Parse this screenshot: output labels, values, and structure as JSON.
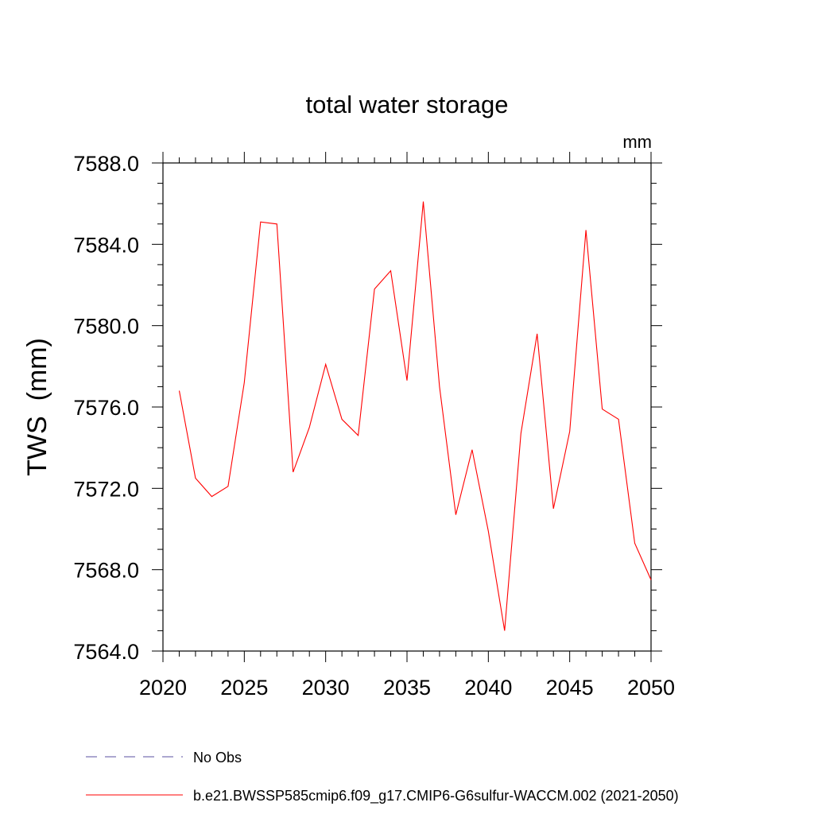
{
  "chart_data": {
    "type": "line",
    "title": "total water storage",
    "units_label": "mm",
    "ylabel": "TWS  (mm)",
    "xlabel": "",
    "xlim": [
      2020,
      2050
    ],
    "ylim": [
      7564.0,
      7588.0
    ],
    "x_ticks": [
      2020,
      2025,
      2030,
      2035,
      2040,
      2045,
      2050
    ],
    "x_tick_labels": [
      "2020",
      "2025",
      "2030",
      "2035",
      "2040",
      "2045",
      "2050"
    ],
    "y_ticks": [
      7564.0,
      7568.0,
      7572.0,
      7576.0,
      7580.0,
      7584.0,
      7588.0
    ],
    "y_tick_labels": [
      "7564.0",
      "7568.0",
      "7572.0",
      "7576.0",
      "7580.0",
      "7584.0",
      "7588.0"
    ],
    "grid": false,
    "legend_position": "bottom",
    "series": [
      {
        "name": "b.e21.BWSSP585cmip6.f09_g17.CMIP6-G6sulfur-WACCM.002 (2021-2050)",
        "color": "#ff0000",
        "style": "solid",
        "x": [
          2021,
          2022,
          2023,
          2024,
          2025,
          2026,
          2027,
          2028,
          2029,
          2030,
          2031,
          2032,
          2033,
          2034,
          2035,
          2036,
          2037,
          2038,
          2039,
          2040,
          2041,
          2042,
          2043,
          2044,
          2045,
          2046,
          2047,
          2048,
          2049,
          2050
        ],
        "y": [
          7576.8,
          7572.5,
          7571.6,
          7572.1,
          7577.2,
          7585.1,
          7585.0,
          7572.8,
          7575.0,
          7578.1,
          7575.4,
          7574.6,
          7581.8,
          7582.7,
          7577.3,
          7586.1,
          7577.0,
          7570.7,
          7573.9,
          7569.9,
          7565.0,
          7574.7,
          7579.6,
          7571.0,
          7574.8,
          7584.7,
          7575.9,
          7575.4,
          7569.3,
          7567.5
        ]
      }
    ],
    "legend": [
      {
        "label": "No Obs",
        "color": "#5a4fa0",
        "style": "dashed"
      },
      {
        "label": "b.e21.BWSSP585cmip6.f09_g17.CMIP6-G6sulfur-WACCM.002 (2021-2050)",
        "color": "#ff0000",
        "style": "solid"
      }
    ]
  }
}
